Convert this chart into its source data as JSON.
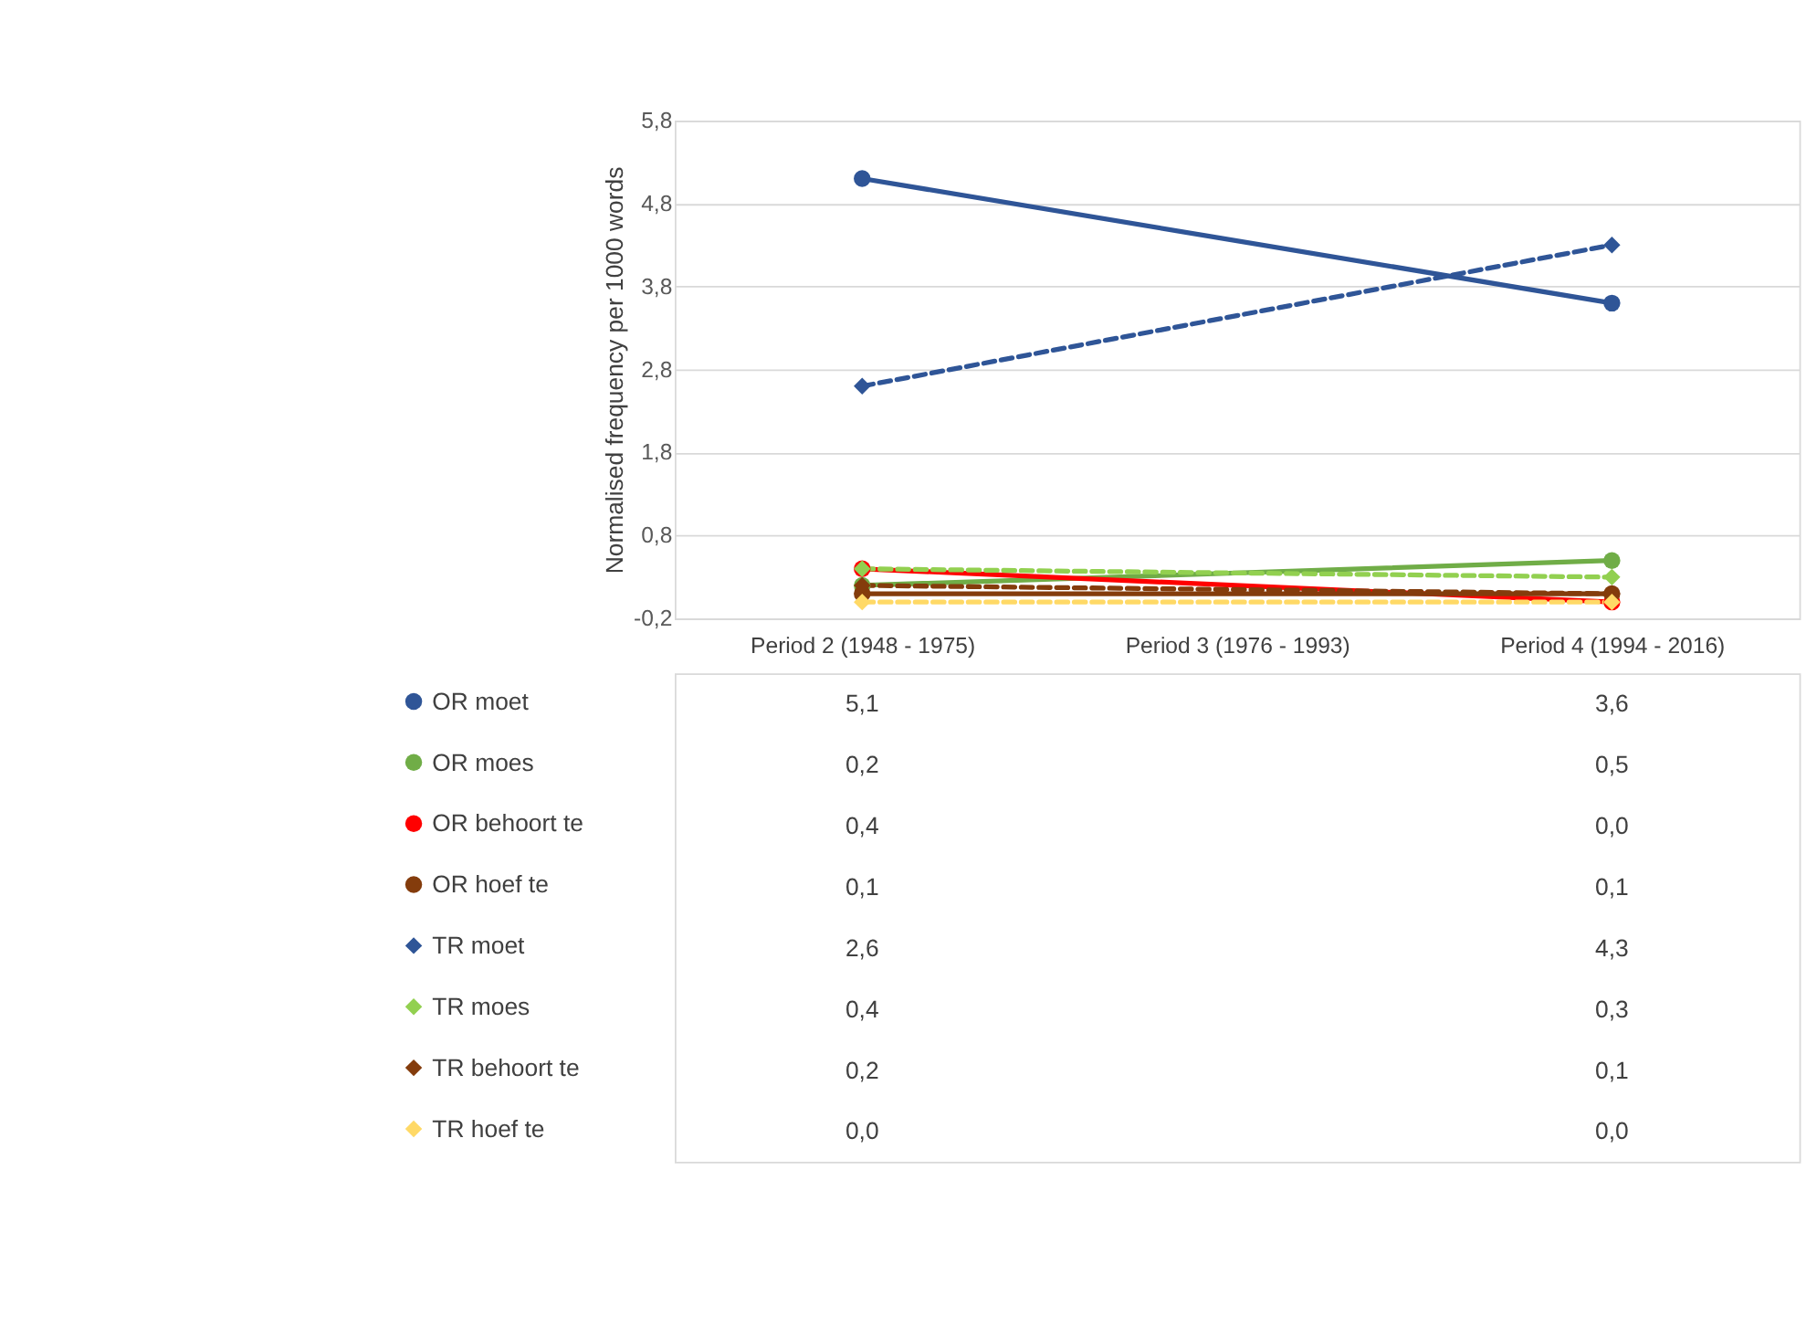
{
  "chart_data": {
    "type": "line",
    "ylabel": "Normalised frequency per 1000 words",
    "categories": [
      "Period 2 (1948 - 1975)",
      "Period 3 (1976 - 1993)",
      "Period 4 (1994 - 2016)"
    ],
    "ylim": [
      -0.2,
      5.8
    ],
    "yticks": [
      {
        "value": -0.2,
        "label": "-0,2"
      },
      {
        "value": 0.8,
        "label": "0,8"
      },
      {
        "value": 1.8,
        "label": "1,8"
      },
      {
        "value": 2.8,
        "label": "2,8"
      },
      {
        "value": 3.8,
        "label": "3,8"
      },
      {
        "value": 4.8,
        "label": "4,8"
      },
      {
        "value": 5.8,
        "label": "5,8"
      }
    ],
    "grid": "y",
    "legend": "bottom left",
    "series": [
      {
        "name": "OR moet",
        "color": "#2f5597",
        "marker": "circle",
        "line_style": "solid",
        "values": [
          5.1,
          null,
          3.6
        ],
        "value_labels": [
          "5,1",
          null,
          "3,6"
        ]
      },
      {
        "name": "OR moes",
        "color": "#70ad47",
        "marker": "circle",
        "line_style": "solid",
        "values": [
          0.2,
          null,
          0.5
        ],
        "value_labels": [
          "0,2",
          null,
          "0,5"
        ]
      },
      {
        "name": "OR behoort te",
        "color": "#ff0000",
        "marker": "circle",
        "line_style": "solid",
        "values": [
          0.4,
          null,
          0.0
        ],
        "value_labels": [
          "0,4",
          null,
          "0,0"
        ]
      },
      {
        "name": "OR hoef te",
        "color": "#843c0c",
        "marker": "circle",
        "line_style": "solid",
        "values": [
          0.1,
          null,
          0.1
        ],
        "value_labels": [
          "0,1",
          null,
          "0,1"
        ]
      },
      {
        "name": "TR moet",
        "color": "#2f5597",
        "marker": "diamond",
        "line_style": "dashed",
        "values": [
          2.6,
          null,
          4.3
        ],
        "value_labels": [
          "2,6",
          null,
          "4,3"
        ]
      },
      {
        "name": "TR moes",
        "color": "#92d050",
        "marker": "diamond",
        "line_style": "dashed",
        "values": [
          0.4,
          null,
          0.3
        ],
        "value_labels": [
          "0,4",
          null,
          "0,3"
        ]
      },
      {
        "name": "TR behoort te",
        "color": "#843c0c",
        "marker": "diamond",
        "line_style": "dashed",
        "values": [
          0.2,
          null,
          0.1
        ],
        "value_labels": [
          "0,2",
          null,
          "0,1"
        ]
      },
      {
        "name": "TR hoef te",
        "color": "#ffd966",
        "marker": "diamond",
        "line_style": "dashed",
        "values": [
          0.0,
          null,
          0.0
        ],
        "value_labels": [
          "0,0",
          null,
          "0,0"
        ]
      }
    ]
  }
}
